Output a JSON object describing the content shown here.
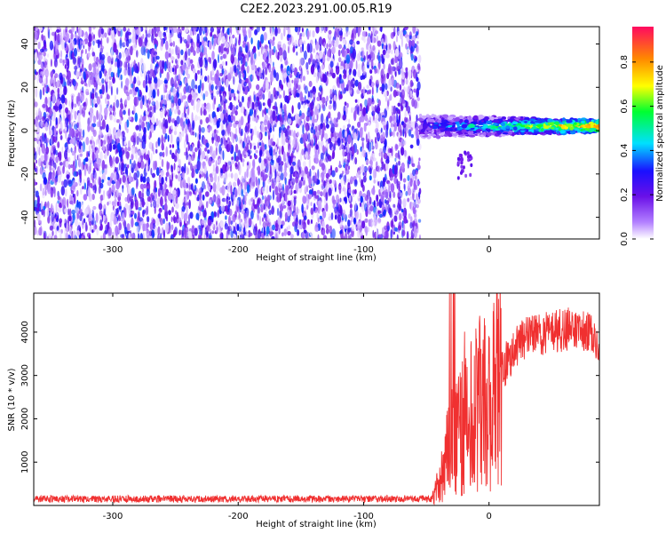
{
  "title": "C2E2.2023.291.00.05.R19",
  "chart_data": [
    {
      "type": "heatmap",
      "xlabel": "Height of straight line (km)",
      "ylabel": "Frequency (Hz)",
      "xlim": [
        -363,
        88
      ],
      "ylim": [
        -50,
        48
      ],
      "xticks": [
        -300,
        -200,
        -100,
        0
      ],
      "yticks": [
        -40,
        -20,
        0,
        20,
        40
      ],
      "colorbar": {
        "label": "Normalized spectral amplitude",
        "range": [
          0,
          0.96
        ],
        "ticks": [
          0.0,
          0.2,
          0.4,
          0.6,
          0.8
        ],
        "colormap": [
          "#ffffff",
          "#8a2be2",
          "#1a10ff",
          "#00e0ff",
          "#00ff30",
          "#ffff00",
          "#ff8800",
          "#ff0040"
        ]
      },
      "regions": [
        {
          "name": "noise",
          "x": [
            -363,
            -55
          ],
          "freq": [
            -50,
            48
          ],
          "amplitude": 0.2
        },
        {
          "name": "signal",
          "x": [
            -55,
            88
          ],
          "freq_center": 2,
          "freq_width": 8,
          "peak_amplitude": 0.9
        }
      ],
      "grid": false
    },
    {
      "type": "line",
      "xlabel": "Height of straight line (km)",
      "ylabel": "SNR (10 * v/v)",
      "xlim": [
        -363,
        88
      ],
      "ylim": [
        0,
        4900
      ],
      "xticks": [
        -300,
        -200,
        -100,
        0
      ],
      "yticks": [
        1000,
        2000,
        3000,
        4000
      ],
      "color": "#f03030",
      "series": [
        {
          "x": [
            -363,
            -300,
            -200,
            -100,
            -45,
            -40,
            -30,
            -20,
            -10,
            0,
            10,
            20,
            30,
            40,
            50,
            60,
            70,
            80,
            88
          ],
          "y": [
            150,
            150,
            150,
            150,
            160,
            500,
            1500,
            2100,
            2400,
            2200,
            3100,
            3600,
            3900,
            3950,
            4000,
            4050,
            4100,
            4000,
            3800
          ]
        }
      ],
      "grid": false
    }
  ]
}
